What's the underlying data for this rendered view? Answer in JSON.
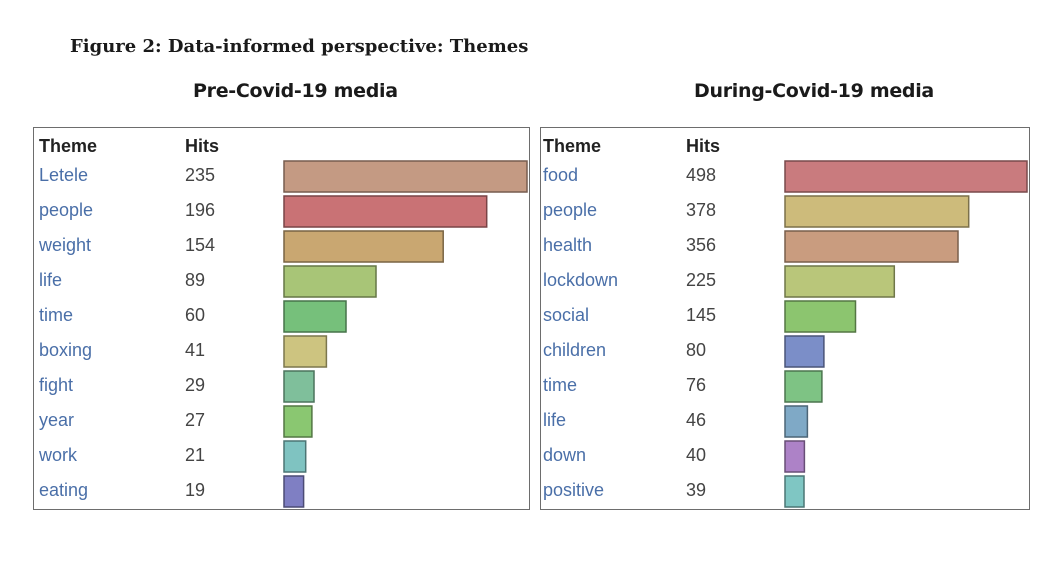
{
  "figure_title": "Figure 2: Data-informed perspective: Themes",
  "chart_data": [
    {
      "type": "bar",
      "title": "Pre-Covid-19 media",
      "col_headers": {
        "theme": "Theme",
        "hits": "Hits"
      },
      "categories": [
        "Letele",
        "people",
        "weight",
        "life",
        "time",
        "boxing",
        "fight",
        "year",
        "work",
        "eating"
      ],
      "values": [
        235,
        196,
        154,
        89,
        60,
        41,
        29,
        27,
        21,
        19
      ],
      "colors": [
        "#c49a83",
        "#c97275",
        "#c9a771",
        "#a8c577",
        "#76c07b",
        "#cdc480",
        "#7fbf9b",
        "#8ac771",
        "#7fc3c1",
        "#7f7fc3"
      ],
      "xlim": [
        0,
        235
      ]
    },
    {
      "type": "bar",
      "title": "During-Covid-19 media",
      "col_headers": {
        "theme": "Theme",
        "hits": "Hits"
      },
      "categories": [
        "food",
        "people",
        "health",
        "lockdown",
        "social",
        "children",
        "time",
        "life",
        "down",
        "positive"
      ],
      "values": [
        498,
        378,
        356,
        225,
        145,
        80,
        76,
        46,
        40,
        39
      ],
      "colors": [
        "#c97b7e",
        "#cdbb7b",
        "#c99c7f",
        "#b9c67a",
        "#8cc56f",
        "#7b8ec8",
        "#7ec384",
        "#7fa9c6",
        "#ad82c7",
        "#7fc6c3"
      ],
      "xlim": [
        0,
        498
      ]
    }
  ]
}
